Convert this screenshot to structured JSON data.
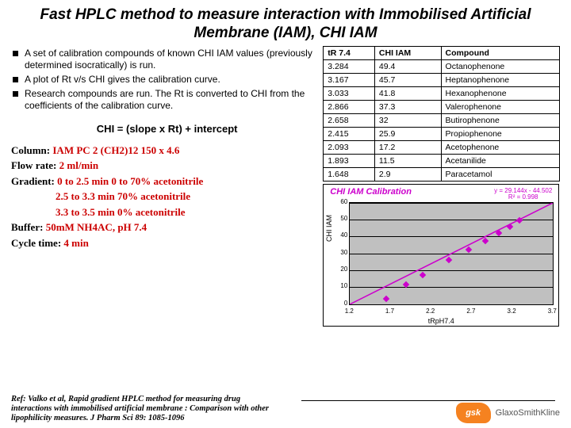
{
  "title": "Fast HPLC method to measure interaction with Immobilised Artificial Membrane (IAM),  CHI IAM",
  "bullets": [
    "A set of calibration compounds of known CHI IAM values (previously determined isocratically) is run.",
    "A plot of Rt v/s CHI gives the calibration curve.",
    "Research compounds are run.  The Rt is converted to CHI from the coefficients of the calibration curve."
  ],
  "formula": "CHI = (slope x Rt) + intercept",
  "params": {
    "column_label": "Column:",
    "column_val": "IAM PC 2 (CH2)12 150 x 4.6",
    "flow_label": "Flow rate:",
    "flow_val": "2 ml/min",
    "grad_label": "Gradient:",
    "grad1": "0 to 2.5 min 0 to 70% acetonitrile",
    "grad2": "2.5 to 3.3 min 70% acetonitrile",
    "grad3": "3.3 to 3.5 min 0% acetonitrile",
    "buffer_label": "Buffer:",
    "buffer_val": "50mM NH4AC, pH 7.4",
    "cycle_label": "Cycle time:",
    "cycle_val": "4 min"
  },
  "ref": "Ref: Valko et al, Rapid gradient HPLC method for measuring drug interactions with immobilised artificial membrane : Comparison with other lipophilicity measures. J Pharm Sci 89: 1085-1096",
  "table": {
    "headers": [
      "tR 7.4",
      "CHI IAM",
      "Compound"
    ],
    "rows": [
      [
        "3.284",
        "49.4",
        "Octanophenone"
      ],
      [
        "3.167",
        "45.7",
        "Heptanophenone"
      ],
      [
        "3.033",
        "41.8",
        "Hexanophenone"
      ],
      [
        "2.866",
        "37.3",
        "Valerophenone"
      ],
      [
        "2.658",
        "32",
        "Butirophenone"
      ],
      [
        "2.415",
        "25.9",
        "Propiophenone"
      ],
      [
        "2.093",
        "17.2",
        "Acetophenone"
      ],
      [
        "1.893",
        "11.5",
        "Acetanilide"
      ],
      [
        "1.648",
        "2.9",
        "Paracetamol"
      ]
    ]
  },
  "chart": {
    "title": "CHI IAM Calibration",
    "eq1": "y = 29.144x - 44.502",
    "eq2": "R² = 0.998",
    "ylabel": "CHI IAM",
    "xlabel": "tRpH7.4",
    "ymin": 0,
    "ymax": 60,
    "ystep": 10,
    "xmin": 1.2,
    "xmax": 3.7,
    "xstep": 0.5,
    "points": [
      [
        1.648,
        2.9
      ],
      [
        1.893,
        11.5
      ],
      [
        2.093,
        17.2
      ],
      [
        2.415,
        25.9
      ],
      [
        2.658,
        32
      ],
      [
        2.866,
        37.3
      ],
      [
        3.033,
        41.8
      ],
      [
        3.167,
        45.7
      ],
      [
        3.284,
        49.4
      ]
    ],
    "color_marker": "#cc00cc",
    "color_plot_bg": "#c0c0c0"
  },
  "logo": {
    "abbr": "gsk",
    "name": "GlaxoSmithKline"
  }
}
